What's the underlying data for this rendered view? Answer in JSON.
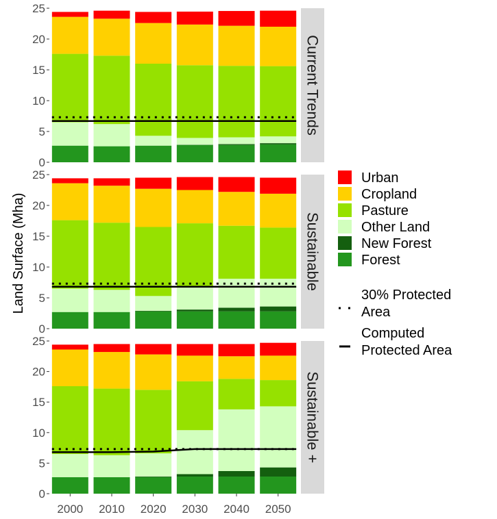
{
  "chart_data": {
    "type": "bar",
    "stacked": true,
    "faceted": true,
    "ylabel": "Land Surface (Mha)",
    "xlabel": "",
    "ylim": [
      0,
      25
    ],
    "yticks": [
      "0",
      "5",
      "10",
      "15",
      "20",
      "25"
    ],
    "categories": [
      "2000",
      "2010",
      "2020",
      "2030",
      "2040",
      "2050"
    ],
    "grid": false,
    "legend_position": "right",
    "series_order_bottom_to_top": [
      "Forest",
      "New Forest",
      "Other Land",
      "Pasture",
      "Cropland",
      "Urban"
    ],
    "legend": {
      "land_use": [
        {
          "name": "Urban",
          "color": "#ff0000"
        },
        {
          "name": "Cropland",
          "color": "#ffd000"
        },
        {
          "name": "Pasture",
          "color": "#96e100"
        },
        {
          "name": "Other Land",
          "color": "#d2ffbe"
        },
        {
          "name": "New Forest",
          "color": "#145f0f"
        },
        {
          "name": "Forest",
          "color": "#23961e"
        }
      ],
      "lines": [
        {
          "name_lines": [
            "30% Protected",
            "Area"
          ],
          "style": "dotted"
        },
        {
          "name_lines": [
            "Computed",
            "Protected Area"
          ],
          "style": "solid"
        }
      ]
    },
    "panels": [
      {
        "label": "Current Trends",
        "series": [
          {
            "name": "Forest",
            "values": [
              2.7,
              2.6,
              2.7,
              2.8,
              2.8,
              2.9
            ]
          },
          {
            "name": "New Forest",
            "values": [
              0,
              0,
              0,
              0.05,
              0.15,
              0.2
            ]
          },
          {
            "name": "Other Land",
            "values": [
              3.8,
              3.6,
              1.6,
              1.1,
              1.1,
              1.1
            ]
          },
          {
            "name": "Pasture",
            "values": [
              11.1,
              11.1,
              11.7,
              11.8,
              11.6,
              11.4
            ]
          },
          {
            "name": "Cropland",
            "values": [
              6.0,
              6.0,
              6.6,
              6.6,
              6.5,
              6.4
            ]
          },
          {
            "name": "Urban",
            "values": [
              0.8,
              1.3,
              1.8,
              2.1,
              2.4,
              2.6
            ]
          }
        ],
        "protected_30pct": [
          7.3,
          7.3,
          7.3,
          7.3,
          7.3,
          7.3
        ],
        "computed_protected": [
          6.7,
          6.7,
          6.7,
          6.7,
          6.7,
          6.7
        ]
      },
      {
        "label": "Sustainable",
        "series": [
          {
            "name": "Forest",
            "values": [
              2.7,
              2.7,
              2.8,
              2.8,
              2.8,
              2.8
            ]
          },
          {
            "name": "New Forest",
            "values": [
              0,
              0,
              0.1,
              0.3,
              0.6,
              0.8
            ]
          },
          {
            "name": "Other Land",
            "values": [
              3.8,
              3.6,
              2.4,
              3.7,
              4.7,
              4.5
            ]
          },
          {
            "name": "Pasture",
            "values": [
              11.1,
              10.9,
              11.2,
              10.3,
              8.6,
              8.3
            ]
          },
          {
            "name": "Cropland",
            "values": [
              6.0,
              6.0,
              6.2,
              5.4,
              5.5,
              5.5
            ]
          },
          {
            "name": "Urban",
            "values": [
              0.8,
              1.2,
              1.8,
              2.1,
              2.4,
              2.6
            ]
          }
        ],
        "protected_30pct": [
          7.3,
          7.3,
          7.3,
          7.3,
          7.3,
          7.3
        ],
        "computed_protected": [
          6.8,
          6.8,
          6.8,
          6.8,
          6.8,
          6.8
        ]
      },
      {
        "label": "Sustainable +",
        "series": [
          {
            "name": "Forest",
            "values": [
              2.7,
              2.7,
              2.7,
              2.8,
              2.8,
              2.8
            ]
          },
          {
            "name": "New Forest",
            "values": [
              0,
              0,
              0.1,
              0.4,
              0.9,
              1.5
            ]
          },
          {
            "name": "Other Land",
            "values": [
              3.8,
              3.6,
              3.8,
              7.2,
              10.1,
              10.0
            ]
          },
          {
            "name": "Pasture",
            "values": [
              11.1,
              10.9,
              10.4,
              8.0,
              5.0,
              4.3
            ]
          },
          {
            "name": "Cropland",
            "values": [
              6.0,
              6.0,
              5.8,
              4.2,
              3.7,
              4.0
            ]
          },
          {
            "name": "Urban",
            "values": [
              0.8,
              1.3,
              1.7,
              1.9,
              2.0,
              2.1
            ]
          }
        ],
        "protected_30pct": [
          7.3,
          7.3,
          7.3,
          7.3,
          7.3,
          7.3
        ],
        "computed_protected": [
          6.8,
          6.8,
          6.9,
          7.3,
          7.3,
          7.3
        ]
      }
    ]
  }
}
